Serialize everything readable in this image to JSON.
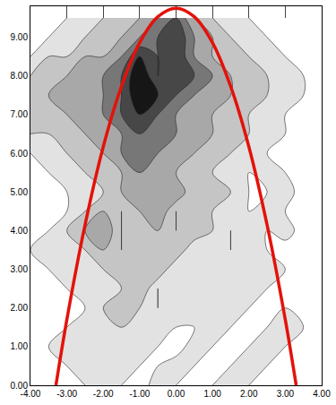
{
  "chart_data": {
    "type": "contour",
    "xlim": [
      -4,
      4
    ],
    "xticks": [
      {
        "value": -4,
        "label": "-4.00"
      },
      {
        "value": -3,
        "label": "-3.00"
      },
      {
        "value": -2,
        "label": "-2.00"
      },
      {
        "value": -1,
        "label": "-1.00"
      },
      {
        "value": 0,
        "label": "0.00"
      },
      {
        "value": 1,
        "label": "1.00"
      },
      {
        "value": 2,
        "label": "2.00"
      },
      {
        "value": 3,
        "label": "3.00"
      },
      {
        "value": 4,
        "label": "4.00"
      }
    ],
    "ylim": [
      0,
      9.8
    ],
    "yticks": [
      {
        "value": 0,
        "label": "0.00"
      },
      {
        "value": 1,
        "label": "1.00"
      },
      {
        "value": 2,
        "label": "2.00"
      },
      {
        "value": 3,
        "label": "3.00"
      },
      {
        "value": 4,
        "label": "4.00"
      },
      {
        "value": 5,
        "label": "5.00"
      },
      {
        "value": 6,
        "label": "6.00"
      },
      {
        "value": 7,
        "label": "7.00"
      },
      {
        "value": 8,
        "label": "8.00"
      },
      {
        "value": 9,
        "label": "9.00"
      }
    ],
    "grid": true,
    "x": [
      -4,
      -3.5,
      -3,
      -2.5,
      -2,
      -1.5,
      -1,
      -0.5,
      0,
      0.5,
      1,
      1.5,
      2,
      2.5,
      3,
      3.5,
      4
    ],
    "y": [
      0,
      0.5,
      1,
      1.5,
      2,
      2.5,
      3,
      3.5,
      4,
      4.5,
      5,
      5.5,
      6,
      6.5,
      7,
      7.5,
      8,
      8.5,
      9,
      9.5
    ],
    "z": [
      [
        2,
        3,
        2,
        3,
        4,
        3,
        2,
        4,
        3,
        2,
        3,
        4,
        3,
        2,
        3,
        2,
        3
      ],
      [
        3,
        2,
        3,
        4,
        3,
        4,
        3,
        3,
        4,
        3,
        2,
        3,
        4,
        3,
        2,
        3,
        2
      ],
      [
        2,
        3,
        4,
        3,
        4,
        3,
        4,
        3,
        2,
        4,
        3,
        2,
        3,
        4,
        3,
        2,
        3
      ],
      [
        3,
        2,
        3,
        4,
        3,
        4,
        3,
        4,
        3,
        3,
        4,
        3,
        2,
        3,
        4,
        3,
        2
      ],
      [
        2,
        3,
        2,
        3,
        4,
        5,
        4,
        3,
        4,
        4,
        3,
        4,
        3,
        2,
        3,
        2,
        3
      ],
      [
        3,
        2,
        3,
        4,
        3,
        4,
        5,
        3,
        4,
        3,
        4,
        3,
        4,
        3,
        2,
        3,
        2
      ],
      [
        2,
        3,
        4,
        3,
        4,
        5,
        4,
        5,
        3,
        4,
        3,
        4,
        3,
        4,
        3,
        2,
        3
      ],
      [
        3,
        4,
        3,
        4,
        5,
        4,
        5,
        4,
        5,
        3,
        4,
        3,
        4,
        3,
        2,
        3,
        2
      ],
      [
        2,
        3,
        4,
        5,
        6,
        4,
        5,
        5,
        4,
        5,
        4,
        3,
        4,
        3,
        4,
        2,
        3
      ],
      [
        3,
        2,
        3,
        4,
        5,
        4,
        5,
        6,
        4,
        5,
        4,
        4,
        3,
        4,
        3,
        3,
        2
      ],
      [
        2,
        3,
        3,
        4,
        4,
        5,
        6,
        5,
        6,
        4,
        5,
        4,
        3,
        3,
        4,
        2,
        3
      ],
      [
        3,
        3,
        4,
        4,
        5,
        5,
        6,
        6,
        5,
        5,
        4,
        4,
        3,
        4,
        3,
        3,
        2
      ],
      [
        3,
        4,
        4,
        5,
        5,
        6,
        7,
        6,
        6,
        5,
        5,
        4,
        4,
        3,
        3,
        2,
        2
      ],
      [
        4,
        4,
        5,
        5,
        6,
        6,
        7,
        7,
        6,
        6,
        5,
        5,
        4,
        4,
        3,
        3,
        2
      ],
      [
        5,
        5,
        5,
        6,
        6,
        7,
        8,
        7,
        6,
        6,
        5,
        5,
        4,
        4,
        3,
        3,
        3
      ],
      [
        5,
        5,
        6,
        6,
        6,
        7,
        9,
        8,
        7,
        6,
        6,
        5,
        5,
        4,
        4,
        3,
        3
      ],
      [
        4,
        5,
        5,
        6,
        6,
        7,
        9,
        7,
        8,
        7,
        6,
        5,
        5,
        4,
        4,
        3,
        3
      ],
      [
        3,
        4,
        4,
        5,
        5,
        6,
        8,
        7,
        8,
        6,
        5,
        5,
        4,
        4,
        3,
        3,
        2
      ],
      [
        3,
        3,
        4,
        4,
        5,
        5,
        6,
        7,
        8,
        6,
        5,
        4,
        4,
        3,
        3,
        2,
        2
      ],
      [
        2,
        3,
        3,
        4,
        4,
        5,
        5,
        6,
        7,
        5,
        4,
        4,
        3,
        3,
        2,
        2,
        2
      ]
    ],
    "series": [
      {
        "type": "line",
        "color": "#e3120b",
        "x": [
          -3.3,
          -3,
          -2.5,
          -2,
          -1.5,
          -1,
          -0.5,
          0,
          0.5,
          1,
          1.5,
          2,
          2.5,
          3,
          3.3
        ],
        "values": [
          0,
          1.7,
          4.15,
          6.17,
          7.73,
          8.86,
          9.53,
          9.75,
          9.53,
          8.86,
          7.73,
          6.17,
          4.15,
          1.7,
          0
        ]
      }
    ]
  }
}
